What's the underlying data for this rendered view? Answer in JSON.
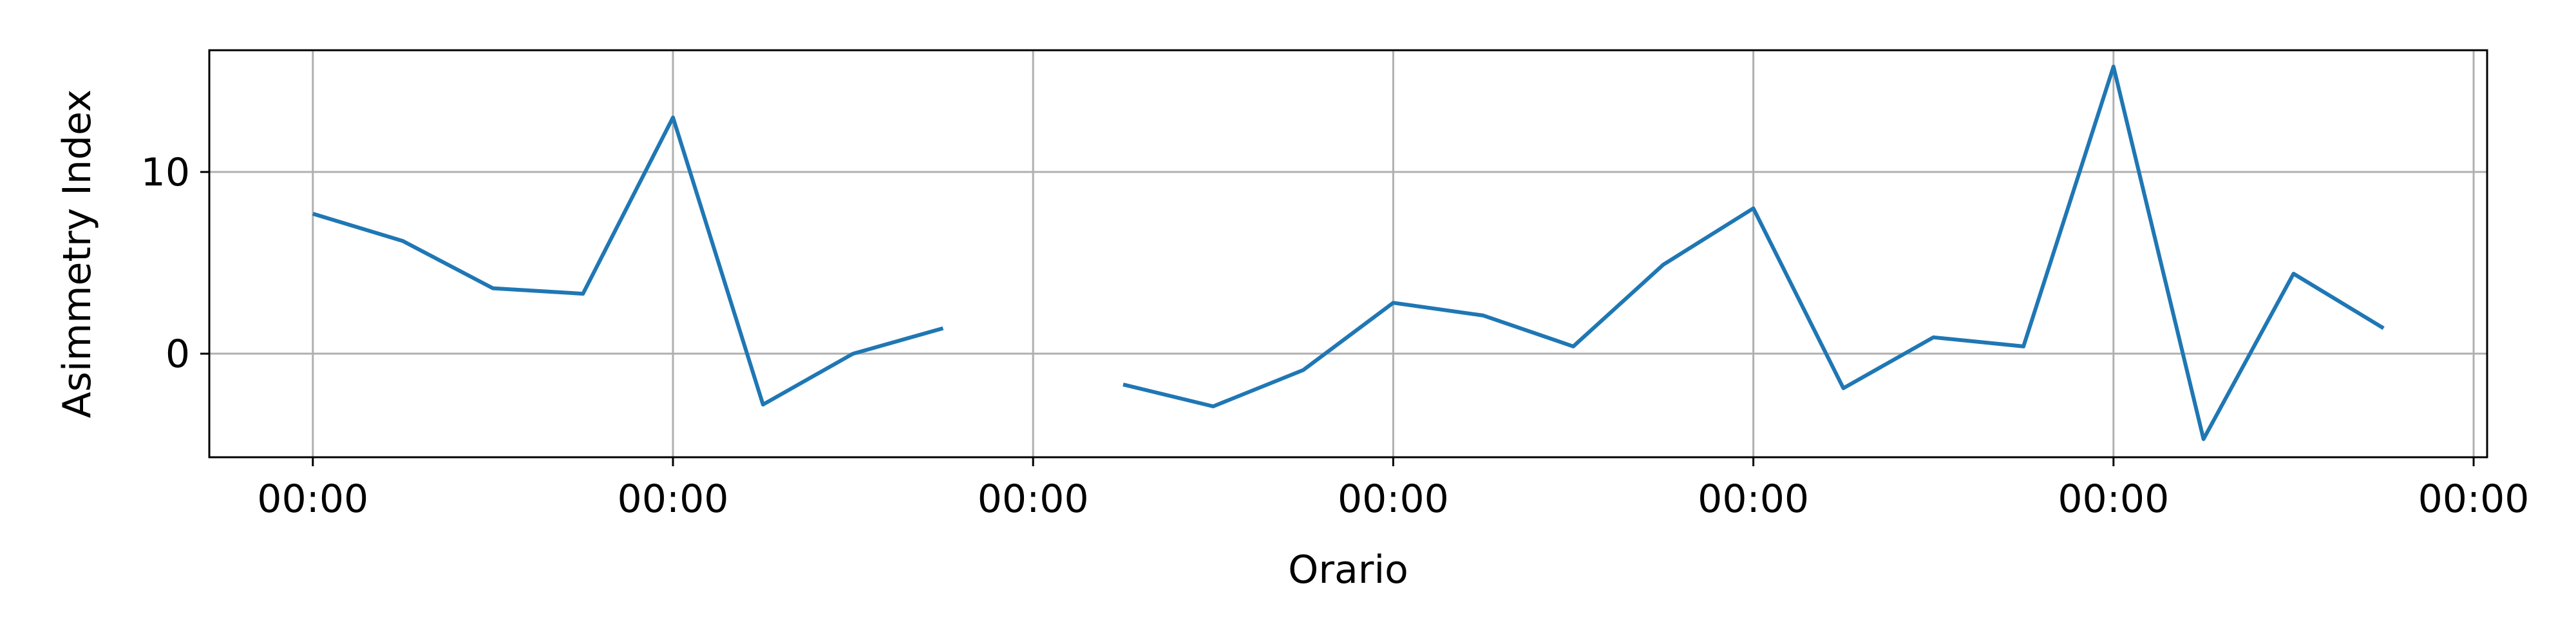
{
  "chart_data": {
    "type": "line",
    "xlabel": "Orario",
    "ylabel": "Asimmetry Index",
    "grid": true,
    "colors": {
      "line": "#1f77b4",
      "grid": "#b0b0b0",
      "frame": "#000000"
    },
    "x_ticks": [
      {
        "label": "00:00",
        "x": 0
      },
      {
        "label": "00:00",
        "x": 8
      },
      {
        "label": "00:00",
        "x": 16
      },
      {
        "label": "00:00",
        "x": 24
      },
      {
        "label": "00:00",
        "x": 32
      },
      {
        "label": "00:00",
        "x": 40
      },
      {
        "label": "00:00",
        "x": 48
      }
    ],
    "y_ticks": [
      0,
      10
    ],
    "xlim": [
      -2.3,
      48.3
    ],
    "ylim": [
      -5.7,
      16.7
    ],
    "series": [
      {
        "x": [
          0,
          2,
          4,
          6,
          8,
          10,
          12,
          14,
          16,
          18,
          20,
          22,
          24,
          26,
          28,
          30,
          32,
          34,
          36,
          38,
          40,
          42,
          44,
          46
        ],
        "values": [
          7.7,
          6.2,
          3.6,
          3.3,
          13.0,
          -2.8,
          0.0,
          1.4,
          null,
          -1.7,
          -2.9,
          -0.9,
          2.8,
          2.1,
          0.4,
          4.9,
          8.0,
          -1.9,
          0.9,
          0.4,
          15.8,
          -4.7,
          4.4,
          1.4
        ]
      }
    ]
  }
}
